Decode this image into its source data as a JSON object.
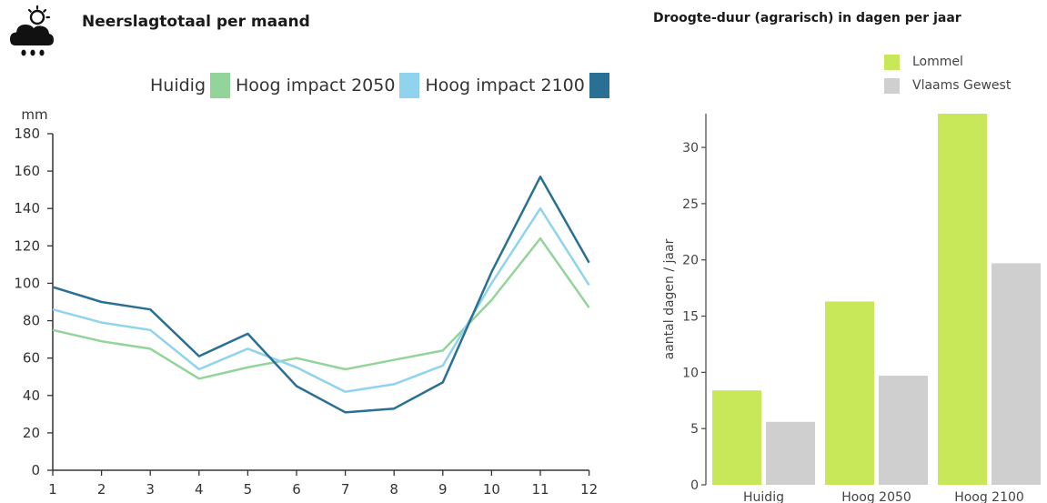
{
  "left_title": "Neerslagtotaal per maand",
  "right_title": "Droogte-duur (agrarisch) in dagen per jaar",
  "icon": "cloud-rain-sun-icon",
  "chart_data": [
    {
      "type": "line",
      "title": "Neerslagtotaal per maand",
      "ylabel": "mm",
      "xlabel": "",
      "x": [
        1,
        2,
        3,
        4,
        5,
        6,
        7,
        8,
        9,
        10,
        11,
        12
      ],
      "ylim": [
        0,
        180
      ],
      "yticks": [
        0,
        20,
        40,
        60,
        80,
        100,
        120,
        140,
        160,
        180
      ],
      "grid": false,
      "legend_placement": "top",
      "legend_labels": [
        "Huidig",
        "Hoog impact 2050",
        "Hoog impact 2100"
      ],
      "series": [
        {
          "name": "Huidig",
          "color": "#93d49a",
          "values": [
            75,
            69,
            65,
            49,
            55,
            60,
            54,
            59,
            64,
            91,
            124,
            87
          ]
        },
        {
          "name": "Hoog impact 2050",
          "color": "#8fd3ee",
          "values": [
            86,
            79,
            75,
            54,
            65,
            55,
            42,
            46,
            56,
            100,
            140,
            99
          ]
        },
        {
          "name": "Hoog impact 2100",
          "color": "#2a6f94",
          "values": [
            98,
            90,
            86,
            61,
            73,
            45,
            31,
            33,
            47,
            106,
            157,
            111
          ]
        }
      ]
    },
    {
      "type": "bar",
      "title": "Droogte-duur (agrarisch) in dagen per jaar",
      "ylabel": "aantal dagen / jaar",
      "xlabel": "",
      "categories": [
        "Huidig",
        "Hoog 2050",
        "Hoog 2100"
      ],
      "ylim": [
        0,
        33
      ],
      "yticks": [
        0,
        5,
        10,
        15,
        20,
        25,
        30
      ],
      "grid": false,
      "legend_placement": "top-right",
      "series": [
        {
          "name": "Lommel",
          "color": "#c8e85a",
          "values": [
            8.4,
            16.3,
            33.0
          ]
        },
        {
          "name": "Vlaams Gewest",
          "color": "#cfcfcf",
          "values": [
            5.6,
            9.7,
            19.7
          ]
        }
      ]
    }
  ]
}
